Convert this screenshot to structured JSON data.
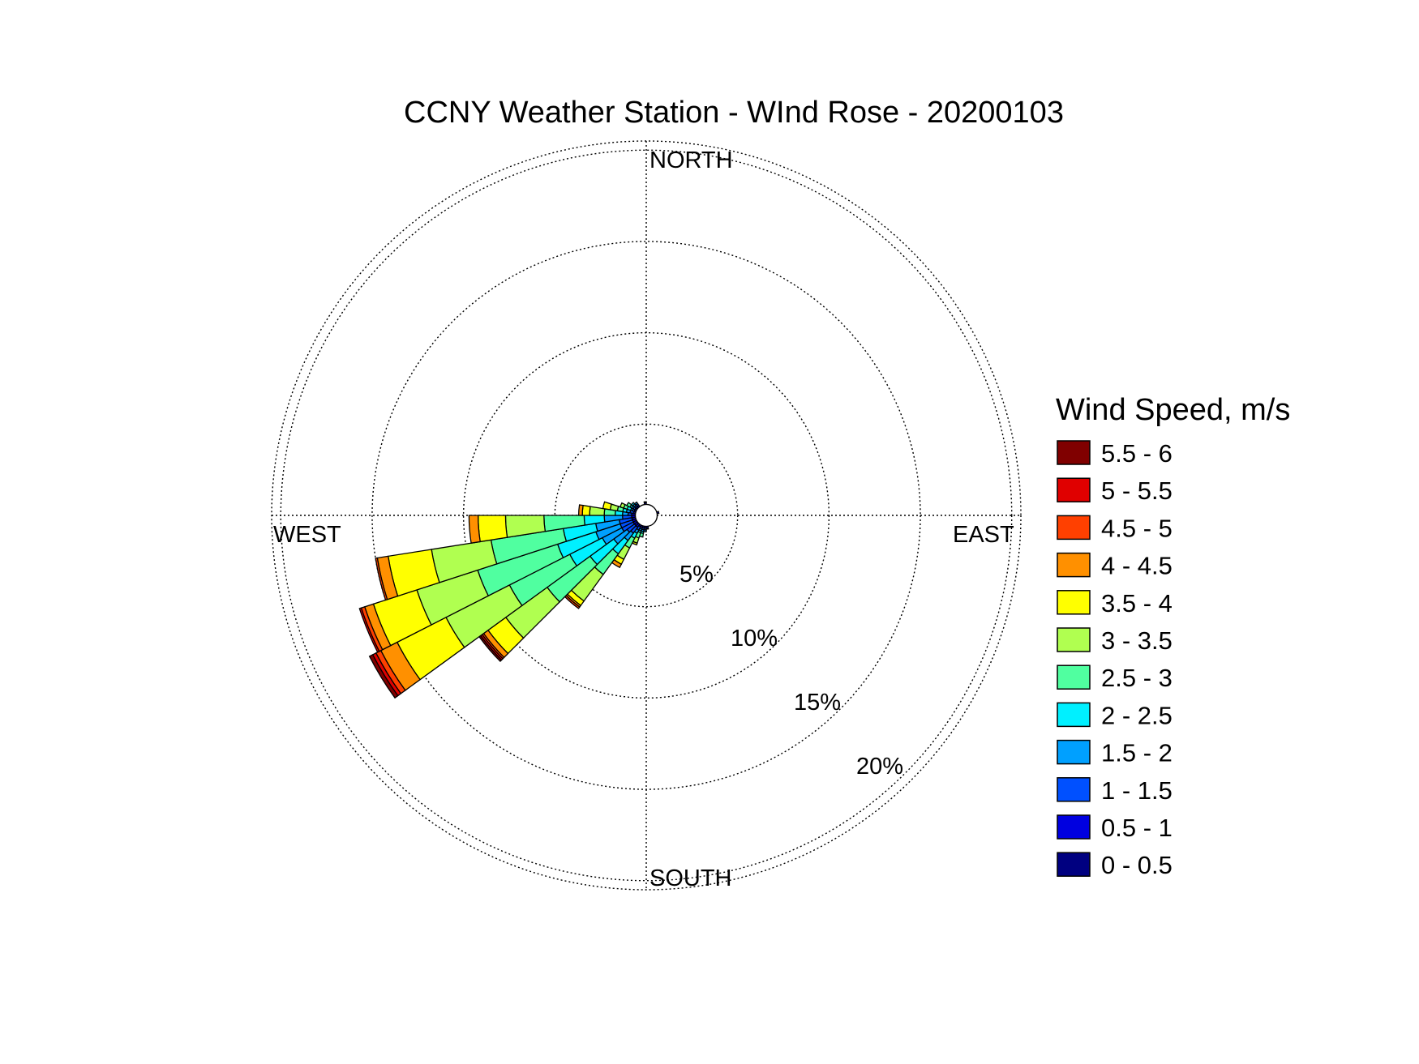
{
  "chart_data": {
    "type": "wind_rose",
    "title": "CCNY Weather Station - WInd Rose - 20200103",
    "compass": {
      "north": "NORTH",
      "south": "SOUTH",
      "east": "EAST",
      "west": "WEST"
    },
    "rings": [
      {
        "value": 5,
        "label": "5%"
      },
      {
        "value": 10,
        "label": "10%"
      },
      {
        "value": 15,
        "label": "15%"
      },
      {
        "value": 20,
        "label": "20%"
      }
    ],
    "r_max": 20.5,
    "legend": {
      "title": "Wind Speed, m/s",
      "bins": [
        {
          "label": "5.5 - 6",
          "color": "#800000"
        },
        {
          "label": "5 - 5.5",
          "color": "#e00000"
        },
        {
          "label": "4.5 - 5",
          "color": "#ff4000"
        },
        {
          "label": "4 - 4.5",
          "color": "#ff9000"
        },
        {
          "label": "3.5 - 4",
          "color": "#ffff00"
        },
        {
          "label": "3 - 3.5",
          "color": "#b0ff50"
        },
        {
          "label": "2.5 - 3",
          "color": "#50ffa0"
        },
        {
          "label": "2 - 2.5",
          "color": "#00f0ff"
        },
        {
          "label": "1.5 - 2",
          "color": "#00a0ff"
        },
        {
          "label": "1 - 1.5",
          "color": "#0050ff"
        },
        {
          "label": "0.5 - 1",
          "color": "#0000e0"
        },
        {
          "label": "0 - 0.5",
          "color": "#000080"
        }
      ]
    },
    "bin_colors_low_to_high": [
      "#000080",
      "#0000e0",
      "#0050ff",
      "#00a0ff",
      "#00f0ff",
      "#50ffa0",
      "#b0ff50",
      "#ffff00",
      "#ff9000",
      "#ff4000",
      "#e00000",
      "#800000"
    ],
    "sector_width_deg": 9,
    "calm_radius": 0.6,
    "sectors": [
      {
        "direction_deg": 193.5,
        "cumulative": [
          0.6,
          0.7,
          0.8,
          0.9,
          1.0,
          1.2
        ]
      },
      {
        "direction_deg": 202.5,
        "cumulative": [
          0.6,
          0.7,
          0.8,
          0.9,
          1.0,
          1.3,
          1.6,
          1.7
        ]
      },
      {
        "direction_deg": 211.5,
        "cumulative": [
          0.6,
          0.7,
          0.9,
          1.1,
          1.4,
          2.0,
          2.7,
          3.0,
          3.2
        ]
      },
      {
        "direction_deg": 220.5,
        "cumulative": [
          0.6,
          0.8,
          1.2,
          1.7,
          2.6,
          4.0,
          5.8,
          6.1,
          6.2,
          6.3
        ]
      },
      {
        "direction_deg": 229.5,
        "cumulative": [
          0.6,
          0.8,
          1.3,
          2.2,
          3.8,
          6.7,
          9.5,
          10.7,
          11.0,
          11.1,
          11.2,
          11.3
        ]
      },
      {
        "direction_deg": 238.5,
        "cumulative": [
          0.6,
          0.8,
          1.5,
          2.7,
          4.7,
          8.4,
          12.3,
          15.3,
          16.3,
          16.6,
          16.8,
          17.0
        ]
      },
      {
        "direction_deg": 247.5,
        "cumulative": [
          0.6,
          0.8,
          1.5,
          2.9,
          5.1,
          9.7,
          13.2,
          15.7,
          16.2,
          16.4,
          16.5
        ]
      },
      {
        "direction_deg": 256.5,
        "cumulative": [
          0.6,
          0.8,
          1.5,
          2.8,
          4.6,
          8.6,
          11.9,
          14.3,
          14.9,
          15.0
        ]
      },
      {
        "direction_deg": 265.5,
        "cumulative": [
          0.6,
          0.8,
          1.3,
          2.3,
          3.4,
          5.6,
          7.7,
          9.2,
          9.7
        ]
      },
      {
        "direction_deg": 274.5,
        "cumulative": [
          0.6,
          0.8,
          1.0,
          1.3,
          1.7,
          2.3,
          3.1,
          3.5,
          3.7
        ]
      },
      {
        "direction_deg": 283.5,
        "cumulative": [
          0.6,
          0.7,
          0.9,
          1.1,
          1.3,
          1.6,
          2.0,
          2.4
        ]
      },
      {
        "direction_deg": 292.5,
        "cumulative": [
          0.6,
          0.7,
          0.8,
          0.9,
          1.1,
          1.3,
          1.5
        ]
      },
      {
        "direction_deg": 301.5,
        "cumulative": [
          0.6,
          0.7,
          0.8,
          0.9,
          1.0,
          1.2
        ]
      },
      {
        "direction_deg": 310.5,
        "cumulative": [
          0.6,
          0.7,
          0.8,
          0.9,
          1.0
        ]
      },
      {
        "direction_deg": 319.5,
        "cumulative": [
          0.6,
          0.7,
          0.8,
          0.9
        ]
      },
      {
        "direction_deg": 184.5,
        "cumulative": [
          0.6,
          0.7,
          0.8,
          0.9
        ]
      },
      {
        "direction_deg": 175.5,
        "cumulative": [
          0.6,
          0.7,
          0.75
        ]
      },
      {
        "direction_deg": 355.5,
        "cumulative": [
          0.6,
          0.7,
          0.75
        ]
      },
      {
        "direction_deg": 76.5,
        "cumulative": [
          0.6,
          0.7
        ]
      }
    ]
  }
}
